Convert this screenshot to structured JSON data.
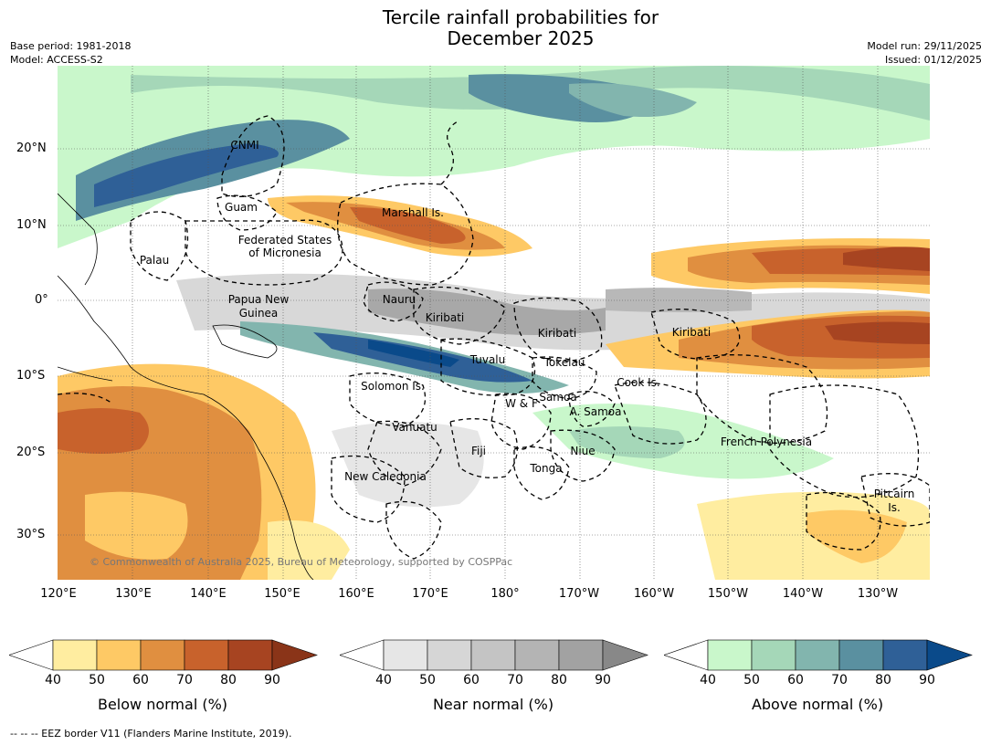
{
  "title_line1": "Tercile rainfall probabilities for",
  "title_line2": "December 2025",
  "meta": {
    "base_period": "Base period: 1981-2018",
    "model": "Model: ACCESS-S2",
    "model_run": "Model run: 29/11/2025",
    "issued": "Issued: 01/12/2025"
  },
  "latitude_labels": [
    "20°N",
    "10°N",
    "0°",
    "10°S",
    "20°S",
    "30°S"
  ],
  "longitude_labels": [
    "120°E",
    "130°E",
    "140°E",
    "150°E",
    "160°E",
    "170°E",
    "180°",
    "170°W",
    "160°W",
    "150°W",
    "140°W",
    "130°W"
  ],
  "regions": [
    "CNMI",
    "Guam",
    "Marshall Is.",
    "Federated States",
    "of Micronesia",
    "Palau",
    "Papua New",
    "Guinea",
    "Nauru",
    "Kiribati",
    "Kiribati",
    "Kiribati",
    "Tuvalu",
    "Tokelau",
    "Solomon Is.",
    "W & F",
    "Samoa",
    "A. Samoa",
    "Cook Is.",
    "Vanuatu",
    "Fiji",
    "Niue",
    "Tonga",
    "French Polynesia",
    "New Caledonia",
    "Pitcairn",
    "Is."
  ],
  "copyright": "© Commonwealth of Australia 2025, Bureau of Meteorology, supported by COSPPac",
  "colorbars": [
    {
      "name": "Below normal (%)",
      "ticks": [
        "40",
        "50",
        "60",
        "70",
        "80",
        "90"
      ],
      "colors": [
        "#ffffff",
        "#ffeda0",
        "#fec965",
        "#e08f40",
        "#c8622c",
        "#a74421",
        "#8a3418"
      ]
    },
    {
      "name": "Near normal (%)",
      "ticks": [
        "40",
        "50",
        "60",
        "70",
        "80",
        "90"
      ],
      "colors": [
        "#ffffff",
        "#e6e6e6",
        "#d6d6d6",
        "#c4c4c4",
        "#b4b4b4",
        "#a2a2a2",
        "#888888"
      ]
    },
    {
      "name": "Above normal (%)",
      "ticks": [
        "40",
        "50",
        "60",
        "70",
        "80",
        "90"
      ],
      "colors": [
        "#ffffff",
        "#c9f7cb",
        "#a5d7b8",
        "#82b5ae",
        "#5a90a0",
        "#2f6097",
        "#0a4a8a"
      ]
    }
  ],
  "footnote": "-- -- -- EEZ border V11 (Flanders Marine Institute, 2019)."
}
